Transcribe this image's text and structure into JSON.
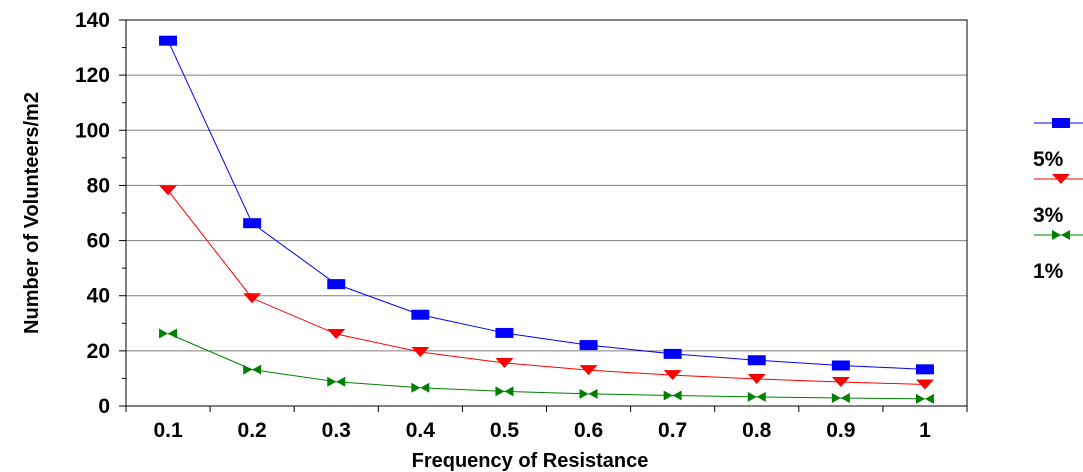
{
  "chart_data": {
    "type": "line",
    "title": "",
    "xlabel": "Frequency of Resistance",
    "ylabel": "Number of Volunteers/m2",
    "x": [
      "0.1",
      "0.2",
      "0.3",
      "0.4",
      "0.5",
      "0.6",
      "0.7",
      "0.8",
      "0.9",
      "1"
    ],
    "ylim": [
      0,
      140
    ],
    "yticks": [
      "0",
      "20",
      "40",
      "60",
      "80",
      "100",
      "120",
      "140"
    ],
    "grid": "horizontal",
    "legend_position": "right",
    "series": [
      {
        "name": "5%",
        "color": "#0000ff",
        "marker": "square",
        "values": [
          132.5,
          66.3,
          44.2,
          33.1,
          26.5,
          22.1,
          18.9,
          16.6,
          14.7,
          13.3
        ]
      },
      {
        "name": "3%",
        "color": "#ff0000",
        "marker": "triangle-down",
        "values": [
          78.2,
          39.1,
          26.1,
          19.6,
          15.6,
          13.0,
          11.2,
          9.8,
          8.7,
          7.8
        ]
      },
      {
        "name": "1%",
        "color": "#008000",
        "marker": "bowtie",
        "values": [
          26.3,
          13.2,
          8.8,
          6.6,
          5.3,
          4.4,
          3.8,
          3.3,
          2.9,
          2.6
        ]
      }
    ]
  }
}
